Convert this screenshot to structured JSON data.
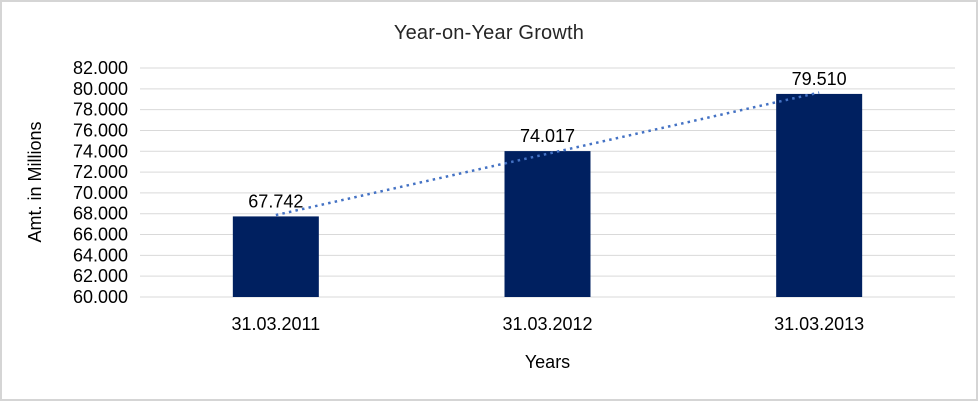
{
  "chart_data": {
    "type": "bar",
    "title": "Year-on-Year Growth",
    "xlabel": "Years",
    "ylabel": "Amt. in Millions",
    "categories": [
      "31.03.2011",
      "31.03.2012",
      "31.03.2013"
    ],
    "values": [
      67742,
      74017,
      79510
    ],
    "value_labels": [
      "67.742",
      "74.017",
      "79.510"
    ],
    "ylim": [
      60000,
      82000
    ],
    "y_ticks": [
      {
        "value": 60000,
        "label": "60.000"
      },
      {
        "value": 62000,
        "label": "62.000"
      },
      {
        "value": 64000,
        "label": "64.000"
      },
      {
        "value": 66000,
        "label": "66.000"
      },
      {
        "value": 68000,
        "label": "68.000"
      },
      {
        "value": 70000,
        "label": "70.000"
      },
      {
        "value": 72000,
        "label": "72.000"
      },
      {
        "value": 74000,
        "label": "74.000"
      },
      {
        "value": 76000,
        "label": "76.000"
      },
      {
        "value": 78000,
        "label": "78.000"
      },
      {
        "value": 80000,
        "label": "80.000"
      },
      {
        "value": 82000,
        "label": "82.000"
      }
    ],
    "grid": true,
    "legend": "none",
    "colors": {
      "bar": "#002060",
      "gridline": "#D9D9D9",
      "trendline": "#4472C4",
      "title_text": "#262626",
      "label_text": "#000000"
    },
    "trendline": {
      "type": "linear",
      "style": "dotted",
      "color": "#4472C4"
    }
  }
}
